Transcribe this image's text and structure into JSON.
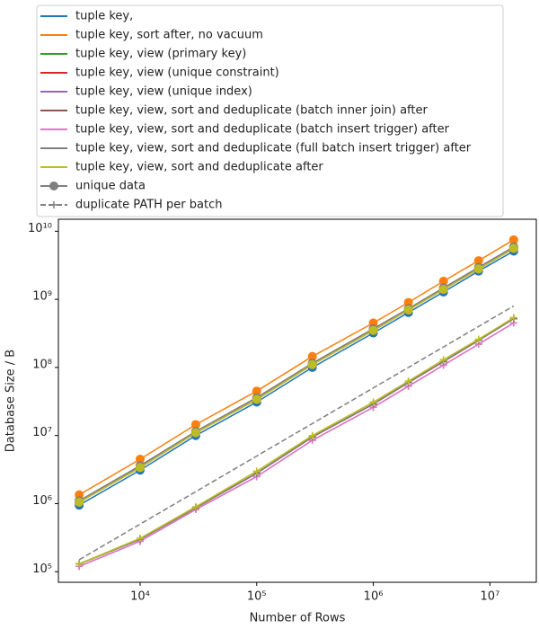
{
  "chart_data": {
    "type": "line",
    "xlabel": "Number of Rows",
    "ylabel": "Database Size / B",
    "log_x": true,
    "log_y": true,
    "x": [
      3000,
      10000,
      30000,
      100000,
      300000,
      1000000,
      2000000,
      4000000,
      8000000,
      16000000
    ],
    "xlim": [
      1990,
      25000000
    ],
    "ylim": [
      70000,
      15000000000
    ],
    "xticks": [
      {
        "value": 10000,
        "label": "10⁴"
      },
      {
        "value": 100000,
        "label": "10⁵"
      },
      {
        "value": 1000000,
        "label": "10⁶"
      },
      {
        "value": 10000000,
        "label": "10⁷"
      }
    ],
    "yticks": [
      {
        "value": 100000,
        "label": "10⁵"
      },
      {
        "value": 1000000,
        "label": "10⁶"
      },
      {
        "value": 10000000,
        "label": "10⁷"
      },
      {
        "value": 100000000,
        "label": "10⁸"
      },
      {
        "value": 1000000000,
        "label": "10⁹"
      },
      {
        "value": 10000000000,
        "label": "10¹⁰"
      }
    ],
    "legend": "top",
    "series": [
      {
        "name": "tuple key,",
        "color": "#1f77b4",
        "values": [
          950000,
          3100000,
          10000000,
          31000000,
          100000000,
          320000000,
          640000000,
          1280000000,
          2600000000,
          5100000000
        ]
      },
      {
        "name": "tuple key, sort after, no vacuum",
        "color": "#ff7f0e",
        "values": [
          1350000,
          4500000,
          14500000,
          45000000,
          145000000,
          450000000,
          900000000,
          1850000000,
          3700000000,
          7500000000
        ]
      },
      {
        "name": "tuple key, view (primary key)",
        "color": "#2ca02c",
        "values": [
          1050000,
          3400000,
          11000000,
          34000000,
          110000000,
          350000000,
          700000000,
          1400000000,
          2800000000,
          5600000000
        ],
        "duplicate": [
          130000,
          300000,
          870000,
          2800000,
          9500000,
          29000000,
          60000000,
          122000000,
          250000000,
          520000000
        ]
      },
      {
        "name": "tuple key, view (unique constraint)",
        "color": "#d62728",
        "values": [
          1050000,
          3400000,
          11000000,
          34000000,
          110000000,
          350000000,
          700000000,
          1400000000,
          2800000000,
          5600000000
        ],
        "duplicate": [
          130000,
          300000,
          870000,
          2800000,
          9500000,
          29000000,
          60000000,
          122000000,
          250000000,
          520000000
        ]
      },
      {
        "name": "tuple key, view (unique index)",
        "color": "#9467bd",
        "values": [
          1050000,
          3400000,
          11000000,
          34000000,
          110000000,
          350000000,
          700000000,
          1400000000,
          2800000000,
          5600000000
        ],
        "duplicate": [
          120000,
          280000,
          820000,
          2500000,
          8500000,
          26000000,
          53000000,
          108000000,
          220000000,
          450000000
        ]
      },
      {
        "name": "tuple key, view, sort and deduplicate (batch inner join) after",
        "color": "#8c564b",
        "values": [
          1100000,
          3600000,
          11500000,
          36000000,
          115000000,
          370000000,
          730000000,
          1470000000,
          2950000000,
          5900000000
        ],
        "duplicate": [
          130000,
          300000,
          870000,
          2800000,
          9500000,
          29000000,
          60000000,
          122000000,
          250000000,
          520000000
        ]
      },
      {
        "name": "tuple key, view, sort and deduplicate (batch insert trigger) after",
        "color": "#e377c2",
        "values": [
          1050000,
          3400000,
          11000000,
          34000000,
          110000000,
          350000000,
          700000000,
          1400000000,
          2800000000,
          5600000000
        ],
        "duplicate": [
          120000,
          280000,
          820000,
          2500000,
          8500000,
          26000000,
          53000000,
          108000000,
          220000000,
          450000000
        ]
      },
      {
        "name": "tuple key, view, sort and deduplicate (full batch insert trigger) after",
        "color": "#7f7f7f",
        "values": [
          1100000,
          3600000,
          11500000,
          36000000,
          115000000,
          370000000,
          730000000,
          1470000000,
          2950000000,
          5900000000
        ],
        "duplicate": [
          130000,
          300000,
          870000,
          2800000,
          9500000,
          29000000,
          60000000,
          122000000,
          250000000,
          520000000
        ]
      },
      {
        "name": "tuple key, view, sort and deduplicate after",
        "color": "#bcbd22",
        "values": [
          1050000,
          3400000,
          11000000,
          34000000,
          110000000,
          350000000,
          700000000,
          1400000000,
          2800000000,
          5600000000
        ],
        "duplicate": [
          130000,
          310000,
          900000,
          3000000,
          10000000,
          31000000,
          63000000,
          130000000,
          260000000,
          540000000
        ]
      }
    ],
    "styles": [
      {
        "name": "unique data",
        "color": "#7f7f7f",
        "marker": "o",
        "dashed": false
      },
      {
        "name": "duplicate PATH per batch",
        "color": "#7f7f7f",
        "marker": "+",
        "dashed": true,
        "values": [
          150000,
          500000,
          1500000,
          5000000,
          15000000,
          50000000,
          100000000,
          200000000,
          400000000,
          800000000
        ]
      }
    ]
  }
}
